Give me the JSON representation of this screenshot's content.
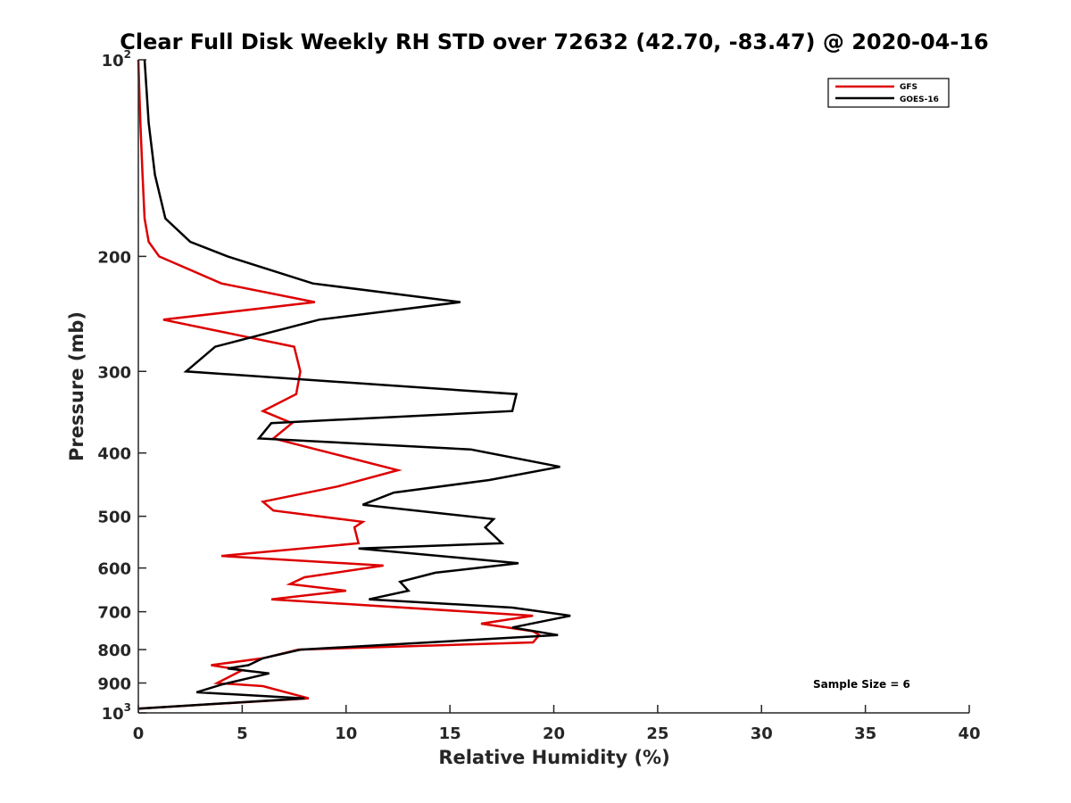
{
  "chart_data": {
    "type": "line",
    "title": "Clear Full Disk Weekly RH STD over 72632 (42.70, -83.47) @ 2020-04-16",
    "xlabel": "Relative Humidity (%)",
    "ylabel": "Pressure (mb)",
    "xlim": [
      0,
      40
    ],
    "ylim": [
      100,
      1000
    ],
    "y_scale": "log",
    "y_reversed": true,
    "grid": false,
    "legend_position": "top-right",
    "x_ticks": [
      "0",
      "5",
      "10",
      "15",
      "20",
      "25",
      "30",
      "35",
      "40"
    ],
    "y_ticks": [
      {
        "value": 100,
        "base": "10",
        "exp": "2"
      },
      {
        "value": 200,
        "label": "200"
      },
      {
        "value": 300,
        "label": "300"
      },
      {
        "value": 400,
        "label": "400"
      },
      {
        "value": 500,
        "label": "500"
      },
      {
        "value": 600,
        "label": "600"
      },
      {
        "value": 700,
        "label": "700"
      },
      {
        "value": 800,
        "label": "800"
      },
      {
        "value": 900,
        "label": "900"
      },
      {
        "value": 1000,
        "base": "10",
        "exp": "3"
      }
    ],
    "annotation": "Sample Size = 6",
    "series": [
      {
        "name": "GFS",
        "color": "#dd0000",
        "points": [
          [
            0.0,
            100
          ],
          [
            0.1,
            125
          ],
          [
            0.2,
            150
          ],
          [
            0.3,
            175
          ],
          [
            0.5,
            190
          ],
          [
            1.0,
            200
          ],
          [
            4.0,
            220
          ],
          [
            8.5,
            235
          ],
          [
            1.2,
            250
          ],
          [
            7.5,
            275
          ],
          [
            7.8,
            300
          ],
          [
            7.6,
            325
          ],
          [
            6.0,
            345
          ],
          [
            7.4,
            360
          ],
          [
            6.5,
            380
          ],
          [
            12.5,
            425
          ],
          [
            9.6,
            450
          ],
          [
            6.0,
            475
          ],
          [
            6.5,
            490
          ],
          [
            10.8,
            510
          ],
          [
            10.4,
            520
          ],
          [
            10.6,
            550
          ],
          [
            4.0,
            575
          ],
          [
            11.8,
            595
          ],
          [
            8.0,
            620
          ],
          [
            7.3,
            635
          ],
          [
            10.0,
            650
          ],
          [
            6.4,
            670
          ],
          [
            19.0,
            710
          ],
          [
            16.5,
            730
          ],
          [
            19.0,
            750
          ],
          [
            19.3,
            760
          ],
          [
            19.0,
            780
          ],
          [
            7.7,
            800
          ],
          [
            6.0,
            825
          ],
          [
            3.5,
            845
          ],
          [
            5.0,
            860
          ],
          [
            3.8,
            900
          ],
          [
            6.0,
            910
          ],
          [
            8.2,
            950
          ],
          [
            0.0,
            985
          ]
        ]
      },
      {
        "name": "GOES-16",
        "color": "#000000",
        "points": [
          [
            0.3,
            100
          ],
          [
            0.5,
            125
          ],
          [
            0.8,
            150
          ],
          [
            1.3,
            175
          ],
          [
            2.5,
            190
          ],
          [
            4.3,
            200
          ],
          [
            8.4,
            220
          ],
          [
            15.5,
            235
          ],
          [
            8.7,
            250
          ],
          [
            3.7,
            275
          ],
          [
            2.3,
            300
          ],
          [
            18.2,
            325
          ],
          [
            18.0,
            345
          ],
          [
            6.4,
            360
          ],
          [
            5.8,
            380
          ],
          [
            16.0,
            395
          ],
          [
            20.3,
            420
          ],
          [
            16.9,
            440
          ],
          [
            12.3,
            460
          ],
          [
            10.8,
            480
          ],
          [
            17.1,
            505
          ],
          [
            16.7,
            520
          ],
          [
            17.5,
            550
          ],
          [
            10.6,
            560
          ],
          [
            18.3,
            590
          ],
          [
            14.3,
            610
          ],
          [
            12.6,
            630
          ],
          [
            13.0,
            650
          ],
          [
            11.1,
            670
          ],
          [
            18.0,
            690
          ],
          [
            20.8,
            710
          ],
          [
            18.0,
            740
          ],
          [
            20.2,
            760
          ],
          [
            7.8,
            800
          ],
          [
            6.0,
            825
          ],
          [
            5.3,
            845
          ],
          [
            4.3,
            855
          ],
          [
            6.3,
            870
          ],
          [
            4.0,
            905
          ],
          [
            2.8,
            930
          ],
          [
            8.0,
            950
          ],
          [
            0.0,
            985
          ]
        ]
      }
    ]
  }
}
